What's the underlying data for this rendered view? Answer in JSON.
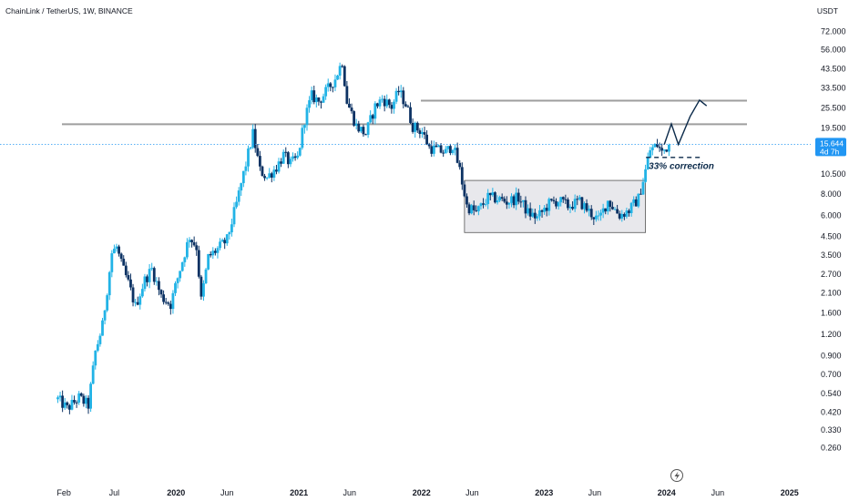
{
  "header": {
    "title": "ChainLink / TetherUS, 1W, BINANCE",
    "currency": "USDT"
  },
  "colors": {
    "up": "#22b3e6",
    "down": "#0c3263",
    "level_line": "#9e9e9e",
    "range_box_fill": "#e8e8ec",
    "range_box_stroke": "#555555",
    "arrow": "#0b2a4a",
    "price_line": "#2196f3"
  },
  "chart_data": {
    "type": "candlestick",
    "title": "ChainLink / TetherUS, 1W, BINANCE",
    "y_scale": "log",
    "ylim": [
      0.22,
      88
    ],
    "xlim": [
      "2019-01-10",
      "2025-02-06"
    ],
    "y_ticks": [
      "72.000",
      "56.000",
      "43.500",
      "33.500",
      "25.500",
      "19.500",
      "15.644",
      "10.500",
      "8.000",
      "6.000",
      "4.500",
      "3.500",
      "2.700",
      "2.100",
      "1.600",
      "1.200",
      "0.900",
      "0.700",
      "0.540",
      "0.420",
      "0.330",
      "0.260"
    ],
    "x_ticks": [
      {
        "label": "Feb",
        "date": "2019-02-01",
        "bold": false
      },
      {
        "label": "Jul",
        "date": "2019-07-01",
        "bold": false
      },
      {
        "label": "2020",
        "date": "2020-01-01",
        "bold": true
      },
      {
        "label": "Jun",
        "date": "2020-06-01",
        "bold": false
      },
      {
        "label": "2021",
        "date": "2021-01-01",
        "bold": true
      },
      {
        "label": "Jun",
        "date": "2021-06-01",
        "bold": false
      },
      {
        "label": "2022",
        "date": "2022-01-01",
        "bold": true
      },
      {
        "label": "Jun",
        "date": "2022-06-01",
        "bold": false
      },
      {
        "label": "2023",
        "date": "2023-01-01",
        "bold": true
      },
      {
        "label": "Jun",
        "date": "2023-06-01",
        "bold": false
      },
      {
        "label": "2024",
        "date": "2024-01-01",
        "bold": true
      },
      {
        "label": "Jun",
        "date": "2024-06-01",
        "bold": false
      },
      {
        "label": "2025",
        "date": "2025-01-01",
        "bold": true
      }
    ],
    "current_price": {
      "value": 15.644,
      "label": "15.644",
      "countdown": "4d 7h"
    },
    "horizontal_levels": [
      20.5,
      28.2
    ],
    "range_box": {
      "x0": "2022-05-09",
      "x1": "2023-10-30",
      "y0": 4.75,
      "y1": 9.6
    },
    "annotation": {
      "text": "33% correction",
      "x": "2023-11-06",
      "y": 11.8,
      "dashed_y": 13.1
    },
    "projection_path": [
      {
        "x": "2023-12-25",
        "y": 15.6
      },
      {
        "x": "2024-01-15",
        "y": 20.6
      },
      {
        "x": "2024-02-05",
        "y": 15.6
      },
      {
        "x": "2024-03-11",
        "y": 22.8
      },
      {
        "x": "2024-04-08",
        "y": 28.4
      },
      {
        "x": "2024-04-29",
        "y": 26.3
      }
    ],
    "weekly_close_path": [
      {
        "x": "2019-01-14",
        "y": 0.5
      },
      {
        "x": "2019-02-11",
        "y": 0.44
      },
      {
        "x": "2019-03-18",
        "y": 0.51
      },
      {
        "x": "2019-04-15",
        "y": 0.46
      },
      {
        "x": "2019-05-06",
        "y": 0.95
      },
      {
        "x": "2019-05-27",
        "y": 1.35
      },
      {
        "x": "2019-06-24",
        "y": 3.6
      },
      {
        "x": "2019-07-08",
        "y": 3.9
      },
      {
        "x": "2019-07-22",
        "y": 3.1
      },
      {
        "x": "2019-08-12",
        "y": 2.4
      },
      {
        "x": "2019-09-02",
        "y": 1.75
      },
      {
        "x": "2019-09-30",
        "y": 2.5
      },
      {
        "x": "2019-10-21",
        "y": 2.9
      },
      {
        "x": "2019-11-18",
        "y": 2.0
      },
      {
        "x": "2019-12-16",
        "y": 1.8
      },
      {
        "x": "2020-01-13",
        "y": 2.9
      },
      {
        "x": "2020-02-10",
        "y": 4.5
      },
      {
        "x": "2020-03-02",
        "y": 3.9
      },
      {
        "x": "2020-03-16",
        "y": 1.9
      },
      {
        "x": "2020-04-06",
        "y": 3.4
      },
      {
        "x": "2020-05-04",
        "y": 3.8
      },
      {
        "x": "2020-06-01",
        "y": 4.3
      },
      {
        "x": "2020-06-29",
        "y": 7.0
      },
      {
        "x": "2020-07-27",
        "y": 12.0
      },
      {
        "x": "2020-08-17",
        "y": 18.0
      },
      {
        "x": "2020-09-07",
        "y": 11.0
      },
      {
        "x": "2020-09-28",
        "y": 10.0
      },
      {
        "x": "2020-10-26",
        "y": 11.5
      },
      {
        "x": "2020-11-16",
        "y": 13.5
      },
      {
        "x": "2020-12-07",
        "y": 12.0
      },
      {
        "x": "2020-12-28",
        "y": 13.0
      },
      {
        "x": "2021-01-18",
        "y": 22.0
      },
      {
        "x": "2021-02-08",
        "y": 30.0
      },
      {
        "x": "2021-03-01",
        "y": 28.0
      },
      {
        "x": "2021-03-29",
        "y": 33.0
      },
      {
        "x": "2021-04-19",
        "y": 38.0
      },
      {
        "x": "2021-05-10",
        "y": 48.0
      },
      {
        "x": "2021-05-24",
        "y": 28.0
      },
      {
        "x": "2021-06-21",
        "y": 20.0
      },
      {
        "x": "2021-07-19",
        "y": 18.0
      },
      {
        "x": "2021-08-16",
        "y": 26.0
      },
      {
        "x": "2021-09-06",
        "y": 29.0
      },
      {
        "x": "2021-10-04",
        "y": 26.0
      },
      {
        "x": "2021-10-25",
        "y": 32.0
      },
      {
        "x": "2021-11-15",
        "y": 27.0
      },
      {
        "x": "2021-12-06",
        "y": 20.0
      },
      {
        "x": "2022-01-03",
        "y": 18.5
      },
      {
        "x": "2022-01-24",
        "y": 15.0
      },
      {
        "x": "2022-02-14",
        "y": 14.5
      },
      {
        "x": "2022-03-14",
        "y": 14.0
      },
      {
        "x": "2022-04-04",
        "y": 15.5
      },
      {
        "x": "2022-04-25",
        "y": 11.0
      },
      {
        "x": "2022-05-16",
        "y": 6.8
      },
      {
        "x": "2022-06-13",
        "y": 6.2
      },
      {
        "x": "2022-07-18",
        "y": 7.6
      },
      {
        "x": "2022-08-15",
        "y": 7.5
      },
      {
        "x": "2022-09-12",
        "y": 7.2
      },
      {
        "x": "2022-10-17",
        "y": 7.6
      },
      {
        "x": "2022-11-14",
        "y": 6.2
      },
      {
        "x": "2022-12-12",
        "y": 5.8
      },
      {
        "x": "2023-01-16",
        "y": 7.0
      },
      {
        "x": "2023-02-13",
        "y": 7.3
      },
      {
        "x": "2023-03-13",
        "y": 6.8
      },
      {
        "x": "2023-04-17",
        "y": 7.2
      },
      {
        "x": "2023-05-15",
        "y": 6.3
      },
      {
        "x": "2023-06-12",
        "y": 5.6
      },
      {
        "x": "2023-07-10",
        "y": 7.3
      },
      {
        "x": "2023-08-14",
        "y": 6.0
      },
      {
        "x": "2023-09-11",
        "y": 6.4
      },
      {
        "x": "2023-10-09",
        "y": 7.5
      },
      {
        "x": "2023-10-30",
        "y": 11.0
      },
      {
        "x": "2023-11-13",
        "y": 14.5
      },
      {
        "x": "2023-12-04",
        "y": 15.5
      },
      {
        "x": "2023-12-18",
        "y": 14.0
      },
      {
        "x": "2024-01-08",
        "y": 15.6
      }
    ]
  }
}
